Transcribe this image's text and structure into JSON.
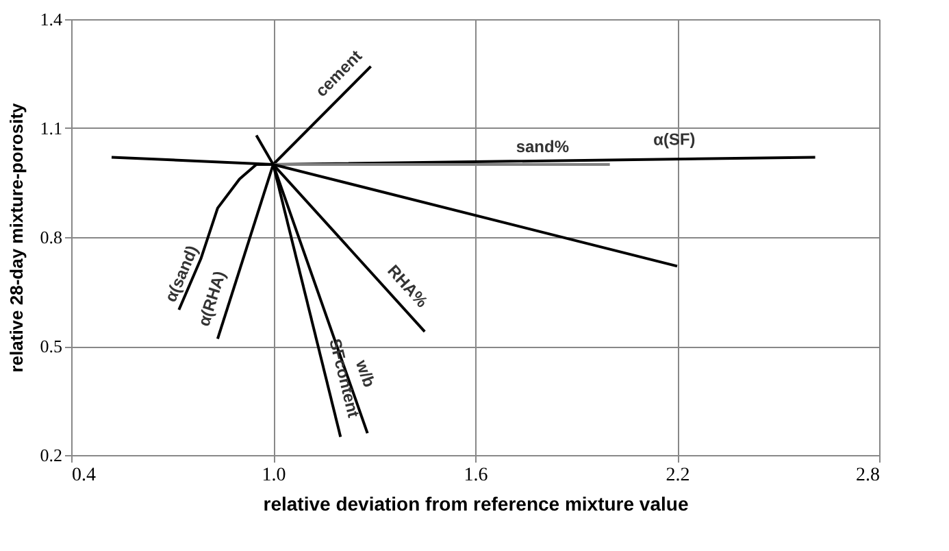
{
  "chart_data": {
    "type": "line",
    "xlabel": "relative deviation from reference mixture value",
    "ylabel": "relative 28-day mixture-porosity",
    "xlim": [
      0.4,
      2.8
    ],
    "xticks": [
      0.4,
      {
        "value": 1.0,
        "label": "1.0"
      },
      1.6,
      2.2,
      2.8
    ],
    "ylim": [
      0.2,
      1.4
    ],
    "yticks": [
      0.2,
      0.5,
      0.8,
      1.1,
      1.4
    ],
    "grid": true,
    "marker": "none",
    "line_style": "solid",
    "series": [
      {
        "name": "cement",
        "color": "#000000",
        "x": [
          1.0,
          1.29
        ],
        "values": [
          1.0,
          1.27
        ]
      },
      {
        "name": "α(SF)",
        "color": "#000000",
        "x": [
          0.52,
          1.0,
          2.61
        ],
        "values": [
          1.02,
          1.0,
          1.02
        ]
      },
      {
        "name": "sand%",
        "color": "#808080",
        "x": [
          1.0,
          2.0
        ],
        "values": [
          1.0,
          1.0
        ]
      },
      {
        "color": "#000000",
        "x": [
          0.95,
          1.0,
          2.2
        ],
        "values": [
          1.08,
          1.0,
          0.72
        ]
      },
      {
        "name": "α(sand)",
        "color": "#000000",
        "x": [
          1.0,
          0.95,
          0.9,
          0.835,
          0.785,
          0.72
        ],
        "values": [
          1.0,
          1.0,
          0.96,
          0.88,
          0.74,
          0.6
        ]
      },
      {
        "name": "α(RHA)",
        "color": "#000000",
        "x": [
          1.0,
          0.835
        ],
        "values": [
          1.0,
          0.52
        ]
      },
      {
        "name": "SFcontent",
        "color": "#000000",
        "x": [
          1.0,
          1.2
        ],
        "values": [
          1.0,
          0.25
        ]
      },
      {
        "name": "w/b",
        "color": "#000000",
        "x": [
          1.0,
          1.28
        ],
        "values": [
          1.0,
          0.26
        ]
      },
      {
        "name": "RHA%",
        "color": "#000000",
        "x": [
          1.0,
          1.45
        ],
        "values": [
          1.0,
          0.54
        ]
      }
    ]
  }
}
